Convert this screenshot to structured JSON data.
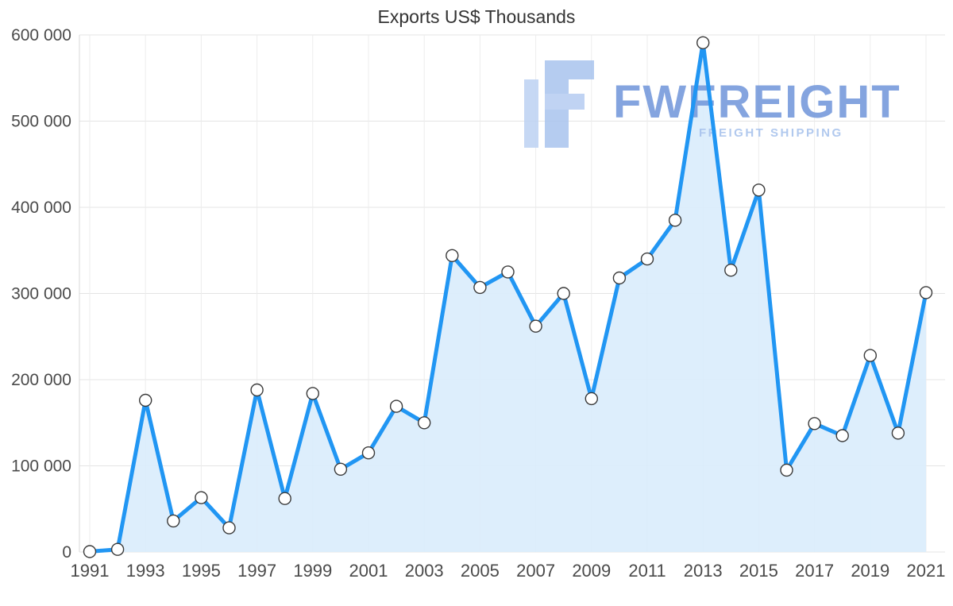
{
  "chart_data": {
    "type": "area",
    "title": "Exports US$ Thousands",
    "x": [
      1991,
      1992,
      1993,
      1994,
      1995,
      1996,
      1997,
      1998,
      1999,
      2000,
      2001,
      2002,
      2003,
      2004,
      2005,
      2006,
      2007,
      2008,
      2009,
      2010,
      2011,
      2012,
      2013,
      2014,
      2015,
      2016,
      2017,
      2018,
      2019,
      2020,
      2021
    ],
    "values": [
      500,
      3000,
      176000,
      36000,
      63000,
      28000,
      188000,
      62000,
      184000,
      96000,
      115000,
      169000,
      150000,
      344000,
      307000,
      325000,
      262000,
      300000,
      178000,
      318000,
      340000,
      385000,
      591000,
      327000,
      420000,
      95000,
      149000,
      135000,
      228000,
      138000,
      301000
    ],
    "ylim": [
      0,
      600000
    ],
    "ytick_step": 100000,
    "ytick_labels": [
      "0",
      "100 000",
      "200 000",
      "300 000",
      "400 000",
      "500 000",
      "600 000"
    ],
    "xtick_years": [
      1991,
      1993,
      1995,
      1997,
      1999,
      2001,
      2003,
      2005,
      2007,
      2009,
      2011,
      2013,
      2015,
      2017,
      2019,
      2021
    ],
    "grid": true,
    "legend": "none",
    "line_color": "#2196f3",
    "fill_color": "#d9ecfc",
    "marker_fill": "#ffffff",
    "marker_stroke": "#3a3a3a",
    "grid_color": "#e4e4e4",
    "axis_label_color": "#4a4a4a"
  },
  "watermark": {
    "brand": "FWFREIGHT",
    "tagline": "FREIGHT SHIPPING",
    "brand_color": "#6f95da",
    "tagline_color": "#a4c0ec"
  }
}
